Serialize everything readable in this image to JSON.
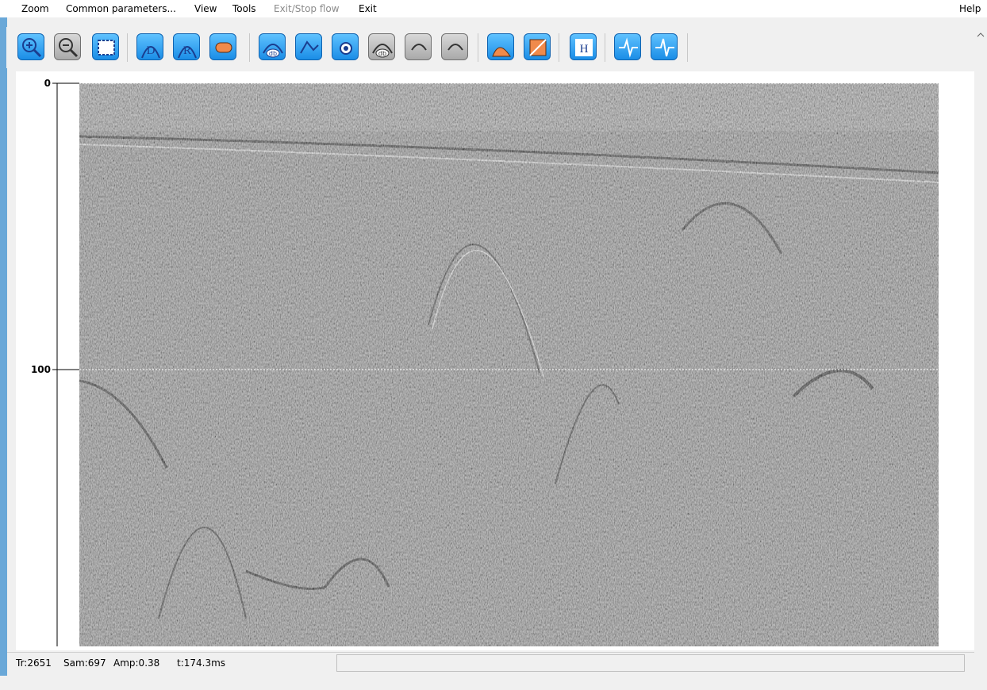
{
  "menu": [
    "Zoom",
    "Common parameters...",
    "View",
    "Tools",
    "Exit/Stop flow",
    "Exit"
  ],
  "help": "Help",
  "toolbar": {
    "labels": [
      "D",
      "R",
      "db",
      "db",
      "H"
    ]
  },
  "axis": {
    "ticks": [
      0,
      100
    ]
  },
  "status": {
    "trace": "Tr:2651",
    "sample": "Sam:697",
    "amplitude": "Amp:0.38",
    "time": "t:174.3ms"
  }
}
